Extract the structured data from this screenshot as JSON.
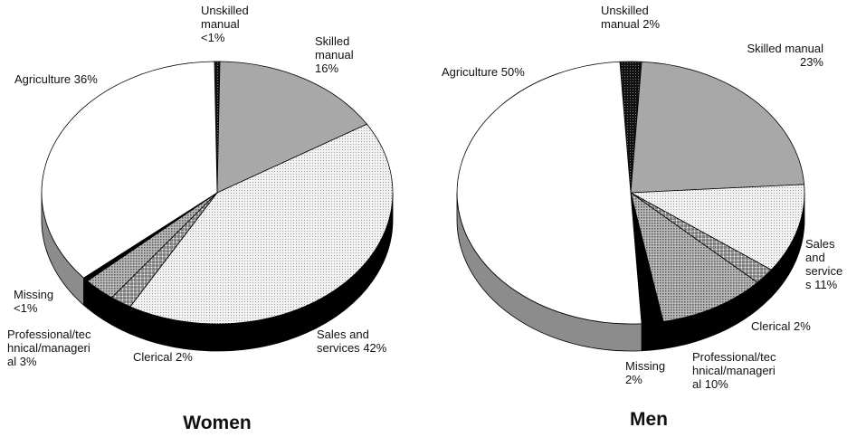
{
  "chart_data": [
    {
      "type": "pie",
      "title": "Women",
      "categories": [
        "Unskilled manual",
        "Skilled manual",
        "Sales and services",
        "Clerical",
        "Professional/technical/managerial",
        "Missing",
        "Agriculture"
      ],
      "values": [
        0.5,
        16,
        42,
        2,
        3,
        0.5,
        36
      ],
      "value_labels": [
        "<1%",
        "16%",
        "42%",
        "2%",
        "3%",
        "<1%",
        "36%"
      ],
      "colors": [
        "#2a2a2a",
        "#a8a8a8",
        "#e6e6e6",
        "#c4c4c4",
        "#9c9c9c",
        "#000000",
        "#ffffff"
      ],
      "side_colors": [
        "#000000",
        "#000000",
        "#000000",
        "#000000",
        "#000000",
        "#000000",
        "#8c8c8c"
      ]
    },
    {
      "type": "pie",
      "title": "Men",
      "categories": [
        "Unskilled manual",
        "Skilled manual",
        "Sales and services",
        "Clerical",
        "Professional/technical/managerial",
        "Missing",
        "Agriculture"
      ],
      "values": [
        2,
        23,
        11,
        2,
        10,
        2,
        50
      ],
      "value_labels": [
        "2%",
        "23%",
        "11%",
        "2%",
        "10%",
        "2%",
        "50%"
      ],
      "colors": [
        "#2a2a2a",
        "#a8a8a8",
        "#e6e6e6",
        "#c4c4c4",
        "#9c9c9c",
        "#000000",
        "#ffffff"
      ],
      "side_colors": [
        "#000000",
        "#000000",
        "#000000",
        "#000000",
        "#000000",
        "#000000",
        "#8c8c8c"
      ]
    }
  ]
}
